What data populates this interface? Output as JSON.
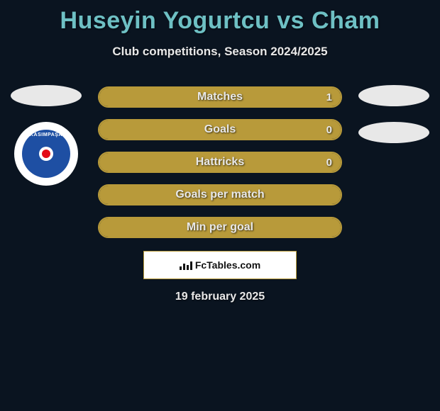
{
  "title": "Huseyin Yogurtcu vs Cham",
  "subtitle": "Club competitions, Season 2024/2025",
  "colors": {
    "background": "#0a1420",
    "accent_teal": "#6ec0c4",
    "bar_border": "#b89a3a",
    "bar_fill": "#b89a3a",
    "text_light": "#e8e8e8",
    "badge_blue": "#1e4fa3",
    "badge_red": "#e30a17"
  },
  "left_badge": {
    "label": "KASIMPAŞA"
  },
  "bars": [
    {
      "label": "Matches",
      "left_val": "",
      "right_val": "1",
      "left_pct": 0,
      "right_pct": 100
    },
    {
      "label": "Goals",
      "left_val": "",
      "right_val": "0",
      "left_pct": 0,
      "right_pct": 100
    },
    {
      "label": "Hattricks",
      "left_val": "",
      "right_val": "0",
      "left_pct": 0,
      "right_pct": 100
    },
    {
      "label": "Goals per match",
      "left_val": "",
      "right_val": "",
      "left_pct": 0,
      "right_pct": 100
    },
    {
      "label": "Min per goal",
      "left_val": "",
      "right_val": "",
      "left_pct": 0,
      "right_pct": 100
    }
  ],
  "footer_brand": "FcTables.com",
  "date": "19 february 2025"
}
